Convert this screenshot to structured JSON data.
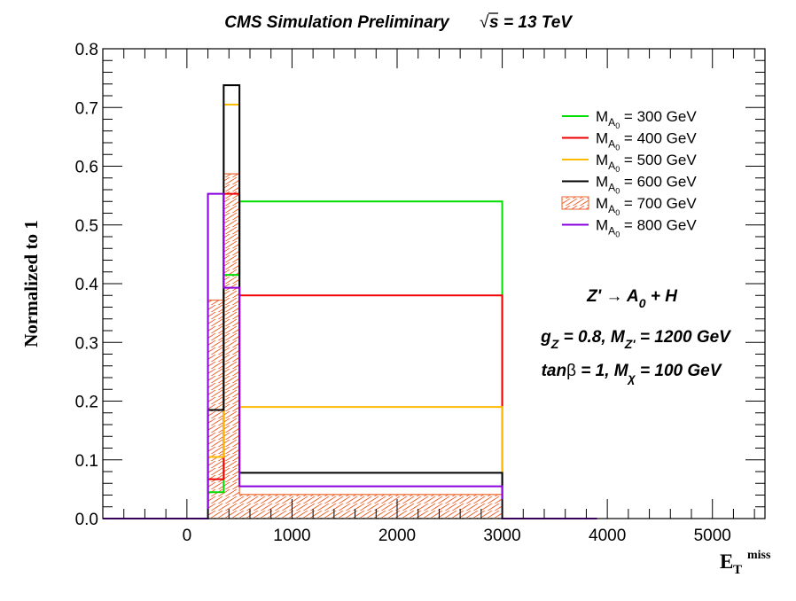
{
  "chart_data": {
    "type": "histogram",
    "title": "CMS Simulation Preliminary",
    "title_energy": "= 13 TeV",
    "title_sqrt": "√",
    "title_s": "s",
    "xlabel": {
      "main": "E",
      "sub": "T",
      "sup": "miss"
    },
    "ylabel": "Normalized to 1",
    "xlim": [
      -800,
      5500
    ],
    "ylim": [
      0,
      0.8
    ],
    "x_ticks": [
      0,
      1000,
      2000,
      3000,
      4000,
      5000
    ],
    "x_tick_labels": [
      "0",
      "1000",
      "2000",
      "3000",
      "4000",
      "5000"
    ],
    "y_ticks": [
      0,
      0.1,
      0.2,
      0.3,
      0.4,
      0.5,
      0.6,
      0.7,
      0.8
    ],
    "y_tick_labels": [
      "0.0",
      "0.1",
      "0.2",
      "0.3",
      "0.4",
      "0.5",
      "0.6",
      "0.7",
      "0.8"
    ],
    "bin_edges": [
      -800,
      200,
      350,
      500,
      3000,
      3900
    ],
    "legend_position": "top-right",
    "series": [
      {
        "name": "= 300 GeV",
        "label_main": "M",
        "label_sub": "A",
        "label_subsub": "0",
        "color": "#00dd00",
        "style": "line",
        "values": [
          0,
          0.045,
          0.415,
          0.54,
          0
        ]
      },
      {
        "name": "= 400 GeV",
        "label_main": "M",
        "label_sub": "A",
        "label_subsub": "0",
        "color": "#ee0000",
        "style": "line",
        "values": [
          0,
          0.067,
          0.553,
          0.38,
          0
        ]
      },
      {
        "name": "= 500 GeV",
        "label_main": "M",
        "label_sub": "A",
        "label_subsub": "0",
        "color": "#ffbb00",
        "style": "line",
        "values": [
          0,
          0.105,
          0.705,
          0.19,
          0
        ]
      },
      {
        "name": "= 600 GeV",
        "label_main": "M",
        "label_sub": "A",
        "label_subsub": "0",
        "color": "#000000",
        "style": "line",
        "values": [
          0,
          0.185,
          0.738,
          0.078,
          0
        ]
      },
      {
        "name": "= 700 GeV",
        "label_main": "M",
        "label_sub": "A",
        "label_subsub": "0",
        "color": "#ee6633",
        "style": "hatched",
        "values": [
          0,
          0.372,
          0.587,
          0.041,
          0
        ]
      },
      {
        "name": "= 800 GeV",
        "label_main": "M",
        "label_sub": "A",
        "label_subsub": "0",
        "color": "#8800dd",
        "style": "line",
        "values": [
          0,
          0.553,
          0.393,
          0.055,
          0
        ]
      }
    ],
    "annotations": [
      {
        "parts": [
          {
            "t": "Z' ",
            "s": "normal"
          },
          {
            "t": "→",
            "s": "normal"
          },
          {
            "t": " A",
            "s": "normal"
          },
          {
            "t": "0",
            "s": "sub"
          },
          {
            "t": " + H",
            "s": "normal"
          }
        ]
      },
      {
        "parts": [
          {
            "t": "g",
            "s": "normal"
          },
          {
            "t": "Z",
            "s": "sub"
          },
          {
            "t": " = 0.8, M",
            "s": "normal"
          },
          {
            "t": "Z'",
            "s": "sub"
          },
          {
            "t": " = 1200 GeV",
            "s": "normal"
          }
        ]
      },
      {
        "parts": [
          {
            "t": "tan",
            "s": "normal"
          },
          {
            "t": "β",
            "s": "upright"
          },
          {
            "t": " = 1, M",
            "s": "normal"
          },
          {
            "t": "χ",
            "s": "sub"
          },
          {
            "t": " = 100 GeV",
            "s": "normal"
          }
        ]
      }
    ]
  }
}
